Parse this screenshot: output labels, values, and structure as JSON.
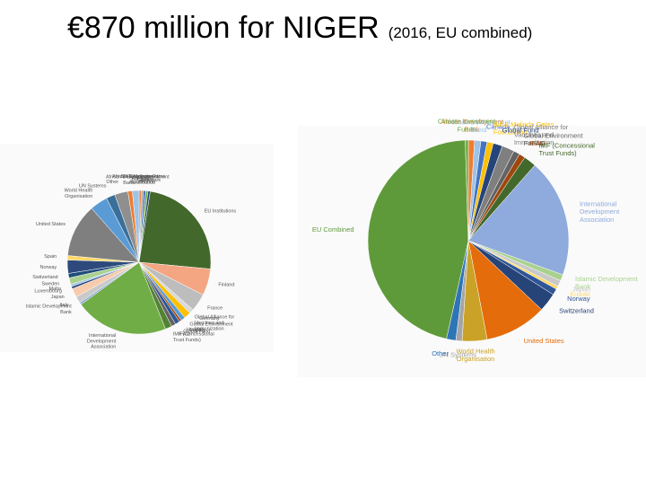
{
  "title": "€870 million for NIGER",
  "subtitle": "(2016, EU combined)",
  "chart_data": [
    {
      "type": "pie",
      "categories": [
        "Belgium",
        "Bill & Melinda Gates Foundation",
        "Canada",
        "Climate Investment Funds",
        "Denmark",
        "EU Institutions",
        "Finland",
        "France",
        "Germany",
        "Global Alliance for Vaccines and Immunization",
        "Global Environment Facility",
        "Hungary",
        "Global Fund",
        "IFAD",
        "IMF (Concessional Trust Funds)",
        "International Development Association",
        "Islamic Development Bank",
        "Italy",
        "Japan",
        "Luxembourg",
        "Malta",
        "Sweden",
        "Switzerland",
        "Norway",
        "Spain",
        "United States",
        "World Health Organisation",
        "UN Systems",
        "Other",
        "African Development Bank",
        "African Development Fund"
      ],
      "values": [
        0.5,
        0.5,
        0.5,
        0.5,
        0.5,
        24,
        6,
        4,
        1,
        1.5,
        1,
        0.5,
        1,
        1,
        1.5,
        21,
        0.5,
        1.5,
        2,
        0.5,
        0.5,
        1.5,
        1,
        3,
        1,
        12,
        4,
        2,
        3,
        1,
        1.5
      ],
      "colors": [
        "#ed7d31",
        "#a5a5a5",
        "#4472c4",
        "#70ad47",
        "#264478",
        "#43682b",
        "#f4a582",
        "#bdbdbd",
        "#d9d9d9",
        "#ffc000",
        "#5b9bd5",
        "#9e480e",
        "#2f5597",
        "#636363",
        "#548235",
        "#70ad47",
        "#8faadc",
        "#c9c9c9",
        "#f8cbad",
        "#264478",
        "#9dc3e6",
        "#a9d18e",
        "#1f4e79",
        "#2e4a7d",
        "#ffd966",
        "#7f7f7f",
        "#5b9bd5",
        "#3a6f9a",
        "#8f8f8f",
        "#ed7d31",
        "#9dc3e6"
      ]
    },
    {
      "type": "pie",
      "categories": [
        "African Development Bank",
        "African Development Fund",
        "Canada",
        "Bill & Melinda Gates Foundation",
        "Global Fund",
        "Global Alliance for Vaccines and Immunization",
        "Global Environment Facility",
        "IFAD",
        "IMF (Concessional Trust Funds)",
        "International Development Association",
        "Islamic Development Bank",
        "Japan",
        "Kuwait",
        "Norway",
        "Switzerland",
        "United States",
        "World Health Organisation",
        "UN Systems",
        "Other",
        "EU Combined",
        "Climate Investment Funds"
      ],
      "values": [
        1,
        1,
        1,
        1,
        1.5,
        2,
        1,
        1,
        2,
        19,
        1,
        1,
        0.5,
        1,
        3,
        10,
        4,
        1,
        1.5,
        46,
        0.5
      ],
      "colors": [
        "#ed7d31",
        "#9dc3e6",
        "#4472c4",
        "#ffc000",
        "#264478",
        "#7f7f7f",
        "#636363",
        "#9e480e",
        "#43682b",
        "#8faadc",
        "#a9d18e",
        "#c9c9c9",
        "#ffd966",
        "#2f5597",
        "#264478",
        "#e46c0a",
        "#c9a227",
        "#a5a5a5",
        "#2e75b6",
        "#5f9a3a",
        "#70ad47"
      ]
    }
  ]
}
